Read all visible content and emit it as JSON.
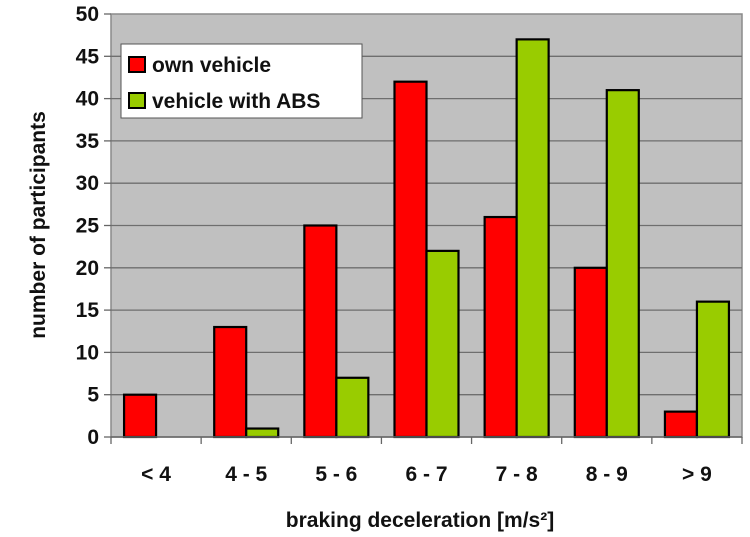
{
  "chart_data": {
    "type": "bar",
    "title": "",
    "xlabel": "braking deceleration [m/s²]",
    "ylabel": "number of participants",
    "categories": [
      "< 4",
      "4 - 5",
      "5 - 6",
      "6 - 7",
      "7 - 8",
      "8 - 9",
      "> 9"
    ],
    "series": [
      {
        "name": "own vehicle",
        "color": "#ff0000",
        "values": [
          5,
          13,
          25,
          42,
          26,
          20,
          3
        ]
      },
      {
        "name": "vehicle with ABS",
        "color": "#99cc00",
        "values": [
          0,
          1,
          7,
          22,
          47,
          41,
          16
        ]
      }
    ],
    "ylim": [
      0,
      50
    ],
    "yticks": [
      0,
      5,
      10,
      15,
      20,
      25,
      30,
      35,
      40,
      45,
      50
    ],
    "grid": true,
    "legend_position": "upper-left inside plot",
    "plot_background": "#c0c0c0"
  },
  "legend": {
    "items": [
      {
        "label": "own vehicle",
        "color": "#ff0000"
      },
      {
        "label": "vehicle with ABS",
        "color": "#99cc00"
      }
    ]
  },
  "axes": {
    "xlabel": "braking deceleration [m/s²]",
    "ylabel": "number of participants"
  }
}
